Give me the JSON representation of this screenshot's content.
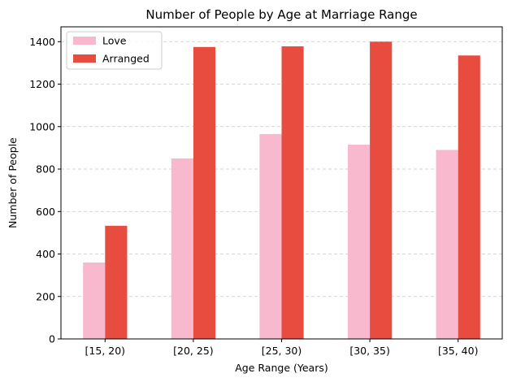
{
  "chart_data": {
    "type": "bar",
    "title": "Number of People by Age at Marriage Range",
    "xlabel": "Age Range (Years)",
    "ylabel": "Number of People",
    "categories": [
      "[15, 20)",
      "[20, 25)",
      "[25, 30)",
      "[30, 35)",
      "[35, 40)"
    ],
    "series": [
      {
        "name": "Love",
        "color": "#f8b9cf",
        "values": [
          360,
          850,
          965,
          915,
          890
        ]
      },
      {
        "name": "Arranged",
        "color": "#e84c3f",
        "values": [
          533,
          1375,
          1378,
          1400,
          1335
        ]
      }
    ],
    "ylim": [
      0,
      1470
    ],
    "yticks": [
      0,
      200,
      400,
      600,
      800,
      1000,
      1200,
      1400
    ],
    "grid": {
      "y": true,
      "style": "dashed",
      "color": "#c8c8c8"
    },
    "legend_position": "top-left"
  }
}
